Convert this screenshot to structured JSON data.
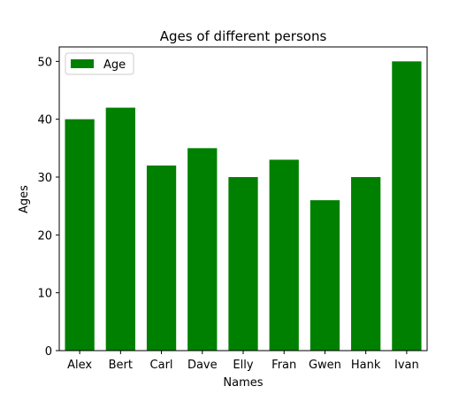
{
  "chart_data": {
    "type": "bar",
    "title": "Ages of different persons",
    "xlabel": "Names",
    "ylabel": "Ages",
    "categories": [
      "Alex",
      "Bert",
      "Carl",
      "Dave",
      "Elly",
      "Fran",
      "Gwen",
      "Hank",
      "Ivan"
    ],
    "series": [
      {
        "name": "Age",
        "values": [
          40,
          42,
          32,
          35,
          30,
          33,
          26,
          30,
          50
        ],
        "color": "#008000"
      }
    ],
    "ylim": [
      0,
      52.5
    ],
    "yticks": [
      0,
      10,
      20,
      30,
      40,
      50
    ],
    "grid": false,
    "legend_position": "top-left"
  }
}
